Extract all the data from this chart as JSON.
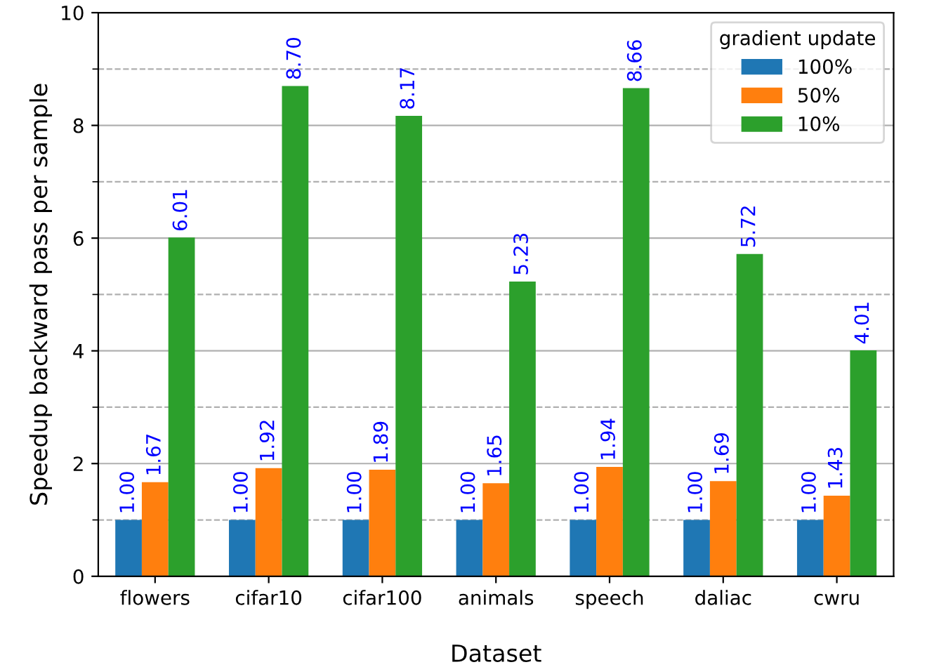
{
  "chart_data": {
    "type": "bar",
    "xlabel": "Dataset",
    "ylabel": "Speedup backward pass per sample",
    "legend_title": "gradient update",
    "legend": "top right",
    "grid": "y",
    "categories": [
      "flowers",
      "cifar10",
      "cifar100",
      "animals",
      "speech",
      "daliac",
      "cwru"
    ],
    "ylim": [
      0,
      10
    ],
    "yticks": [
      0,
      {
        "value": 1,
        "label": null
      },
      2,
      {
        "value": 3,
        "label": null
      },
      4,
      {
        "value": 5,
        "label": null
      },
      6,
      {
        "value": 7,
        "label": null
      },
      8,
      {
        "value": 9,
        "label": null
      },
      10
    ],
    "series": [
      {
        "name": "100%",
        "color": "#1f77b4",
        "values": [
          1.0,
          1.0,
          1.0,
          1.0,
          1.0,
          1.0,
          1.0
        ],
        "value_labels": [
          "1.00",
          "1.00",
          "1.00",
          "1.00",
          "1.00",
          "1.00",
          "1.00"
        ]
      },
      {
        "name": "50%",
        "color": "#ff7f0e",
        "values": [
          1.67,
          1.92,
          1.89,
          1.65,
          1.94,
          1.69,
          1.43
        ],
        "value_labels": [
          "1.67",
          "1.92",
          "1.89",
          "1.65",
          "1.94",
          "1.69",
          "1.43"
        ]
      },
      {
        "name": "10%",
        "color": "#2ca02c",
        "values": [
          6.01,
          8.7,
          8.17,
          5.23,
          8.66,
          5.72,
          4.01
        ],
        "value_labels": [
          "6.01",
          "8.70",
          "8.17",
          "5.23",
          "8.66",
          "5.72",
          "4.01"
        ]
      }
    ]
  }
}
